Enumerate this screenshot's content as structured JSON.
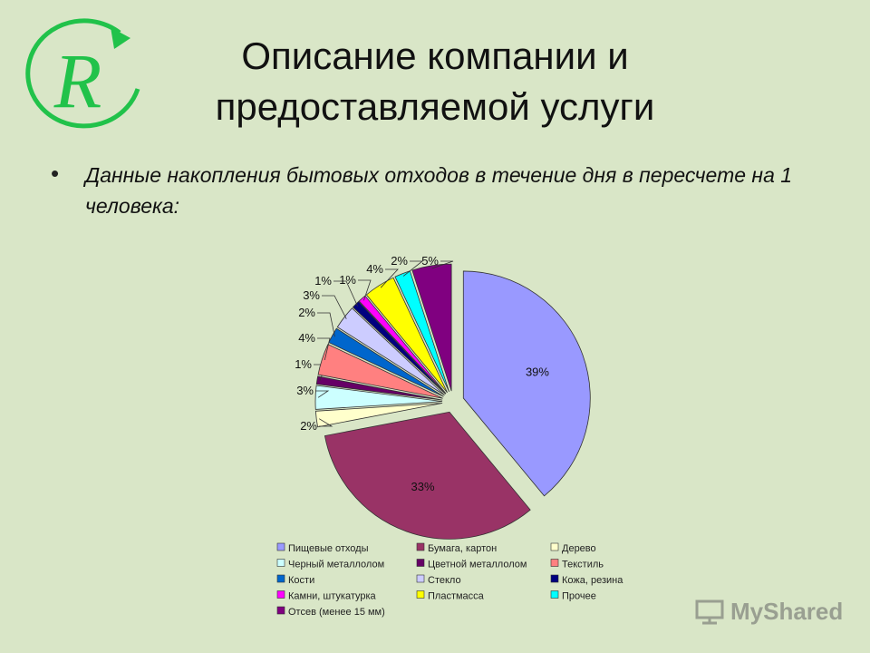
{
  "slide": {
    "title_line1": "Описание компании и",
    "title_line2": "предоставляемой услуги",
    "bullet": "•",
    "bullet_text": "Данные накопления бытовых отходов в течение дня в пересчете на 1 человека:",
    "logo_letter": "R",
    "watermark_text": "MyShared"
  },
  "colors": {
    "background": "#d9e6c7",
    "logo_green": "#21c24a"
  },
  "chart_data": {
    "type": "pie",
    "title": "",
    "legend_position": "bottom",
    "slices": [
      {
        "label": "Пищевые отходы",
        "value": 39,
        "label_text": "39%",
        "color": "#9999ff"
      },
      {
        "label": "Бумага, картон",
        "value": 33,
        "label_text": "33%",
        "color": "#993366"
      },
      {
        "label": "Дерево",
        "value": 2,
        "label_text": "2%",
        "color": "#ffffcc"
      },
      {
        "label": "Черный металлолом",
        "value": 3,
        "label_text": "3%",
        "color": "#ccffff"
      },
      {
        "label": "Цветной металлолом",
        "value": 1,
        "label_text": "1%",
        "color": "#660066"
      },
      {
        "label": "Текстиль",
        "value": 4,
        "label_text": "4%",
        "color": "#ff8080"
      },
      {
        "label": "Кости",
        "value": 2,
        "label_text": "2%",
        "color": "#0066cc"
      },
      {
        "label": "Стекло",
        "value": 3,
        "label_text": "3%",
        "color": "#ccccff"
      },
      {
        "label": "Кожа, резина",
        "value": 1,
        "label_text": "1%",
        "color": "#000080"
      },
      {
        "label": "Камни, штукатурка",
        "value": 1,
        "label_text": "1%",
        "color": "#ff00ff"
      },
      {
        "label": "Пластмасса",
        "value": 4,
        "label_text": "4%",
        "color": "#ffff00"
      },
      {
        "label": "Прочее",
        "value": 2,
        "label_text": "2%",
        "color": "#00ffff"
      },
      {
        "label": "Отсев (менее 15 мм)",
        "value": 5,
        "label_text": "5%",
        "color": "#800080"
      }
    ]
  }
}
